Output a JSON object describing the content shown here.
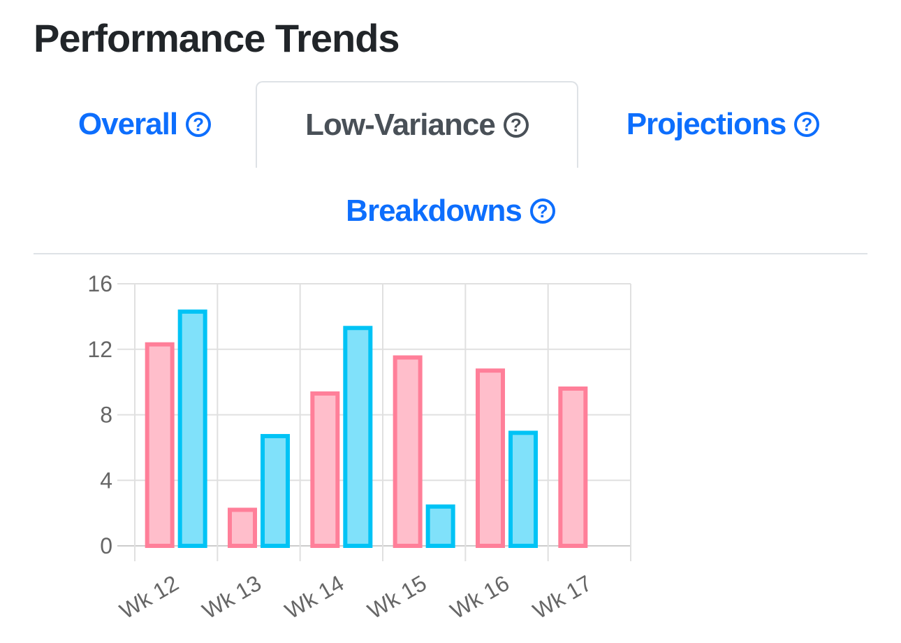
{
  "page": {
    "title": "Performance Trends"
  },
  "tabs": [
    {
      "label": "Overall",
      "help_icon": "question-circle-icon",
      "active": false
    },
    {
      "label": "Low-Variance",
      "help_icon": "question-circle-icon",
      "active": true
    },
    {
      "label": "Projections",
      "help_icon": "question-circle-icon",
      "active": false
    },
    {
      "label": "Breakdowns",
      "help_icon": "question-circle-icon",
      "active": false
    }
  ],
  "colors": {
    "link": "#0d6efd",
    "active_tab_text": "#495057",
    "series_pink_border": "#ff7f99",
    "series_pink_fill": "#ffbecb",
    "series_blue_border": "#00c3f5",
    "series_blue_fill": "#80e1fa",
    "grid": "#e0e0e0",
    "tick_text": "#666666"
  },
  "chart_data": {
    "type": "bar",
    "categories": [
      "Wk 12",
      "Wk 13",
      "Wk 14",
      "Wk 15",
      "Wk 16",
      "Wk 17"
    ],
    "series": [
      {
        "color": "#ff7f99",
        "fill": "#ffbecb",
        "values": [
          12.3,
          2.2,
          9.3,
          11.5,
          10.7,
          9.6
        ]
      },
      {
        "color": "#00c3f5",
        "fill": "#80e1fa",
        "values": [
          14.3,
          6.7,
          13.3,
          2.4,
          6.9,
          null
        ]
      }
    ],
    "yticks": [
      0,
      4,
      8,
      12,
      16
    ],
    "ylim": [
      0,
      16
    ],
    "grid": true,
    "legend": "none",
    "xtick_rotation": -30
  }
}
